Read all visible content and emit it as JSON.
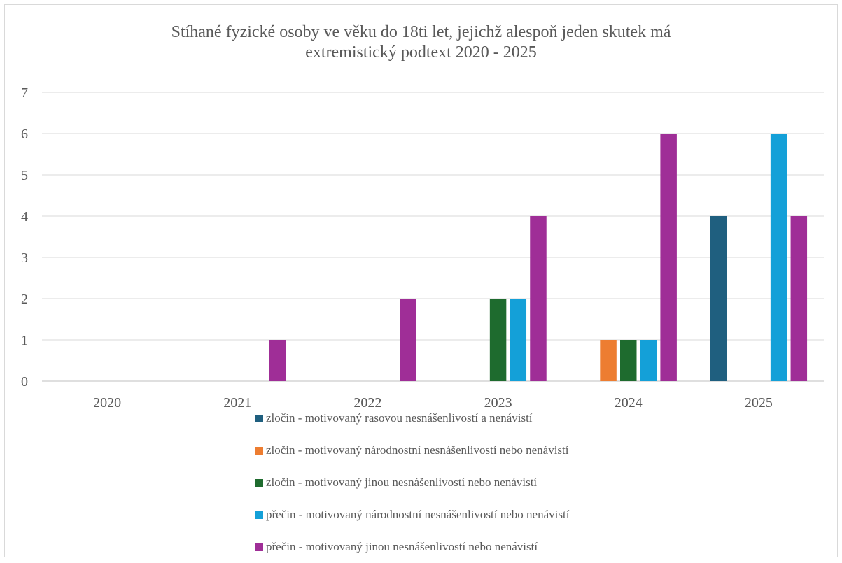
{
  "chart_data": {
    "type": "bar",
    "title_lines": [
      "Stíhané fyzické osoby ve věku do 18ti let, jejichž alespoň jeden skutek má",
      "extremistický podtext 2020 - 2025"
    ],
    "categories": [
      "2020",
      "2021",
      "2022",
      "2023",
      "2024",
      "2025"
    ],
    "ylim": [
      0,
      7
    ],
    "yticks": [
      "0",
      "1",
      "2",
      "3",
      "4",
      "5",
      "6",
      "7"
    ],
    "grid": true,
    "legend_position": "bottom",
    "series": [
      {
        "name": "zločin - motivovaný rasovou nesnášenlivostí a nenávistí",
        "color": "#1f5f7f",
        "values": [
          0,
          0,
          0,
          0,
          0,
          4
        ]
      },
      {
        "name": "zločin - motivovaný národnostní nesnášenlivostí nebo nenávistí",
        "color": "#ed7d31",
        "values": [
          0,
          0,
          0,
          0,
          1,
          0
        ]
      },
      {
        "name": "zločin - motivovaný jinou nesnášenlivostí nebo nenávistí",
        "color": "#1e6b2e",
        "values": [
          0,
          0,
          0,
          2,
          1,
          0
        ]
      },
      {
        "name": "přečin - motivovaný národnostní nesnášenlivostí nebo nenávistí",
        "color": "#14a0d8",
        "values": [
          0,
          0,
          0,
          2,
          1,
          6
        ]
      },
      {
        "name": "přečin - motivovaný jinou nesnášenlivostí nebo nenávistí",
        "color": "#9f2e97",
        "values": [
          0,
          1,
          2,
          4,
          6,
          4
        ]
      }
    ]
  }
}
